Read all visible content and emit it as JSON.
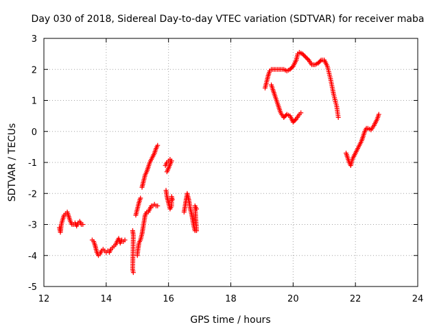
{
  "chart_data": {
    "type": "scatter",
    "title": "Day 030 of 2018, Sidereal Day-to-day VTEC variation (SDTVAR) for receiver maba",
    "xlabel": "GPS time / hours",
    "ylabel": "SDTVAR / TECUs",
    "xlim": [
      12,
      24
    ],
    "ylim": [
      -5,
      3
    ],
    "x_ticks": [
      12,
      14,
      16,
      18,
      20,
      22,
      24
    ],
    "y_ticks": [
      -5,
      -4,
      -3,
      -2,
      -1,
      0,
      1,
      2,
      3
    ],
    "x_tick_labels": [
      "12",
      "14",
      "16",
      "18",
      "20",
      "22",
      "24"
    ],
    "y_tick_labels": [
      "-5",
      "-4",
      "-3",
      "-2",
      "-1",
      "0",
      "1",
      "2",
      "3"
    ],
    "grid": true,
    "marker": "+",
    "color": "#ff0000",
    "series": [
      {
        "name": "SDTVAR",
        "segments": [
          [
            [
              12.5,
              -3.1
            ],
            [
              12.53,
              -3.25
            ],
            [
              12.56,
              -3.0
            ],
            [
              12.6,
              -2.85
            ],
            [
              12.65,
              -2.7
            ],
            [
              12.7,
              -2.65
            ],
            [
              12.75,
              -2.6
            ],
            [
              12.8,
              -2.75
            ],
            [
              12.85,
              -2.9
            ],
            [
              12.9,
              -3.0
            ],
            [
              12.95,
              -3.0
            ],
            [
              13.0,
              -2.95
            ],
            [
              13.05,
              -3.05
            ],
            [
              13.1,
              -2.95
            ],
            [
              13.15,
              -2.9
            ],
            [
              13.2,
              -3.0
            ],
            [
              13.25,
              -3.0
            ]
          ],
          [
            [
              13.55,
              -3.5
            ],
            [
              13.6,
              -3.55
            ],
            [
              13.65,
              -3.7
            ],
            [
              13.7,
              -3.9
            ],
            [
              13.75,
              -4.0
            ],
            [
              13.8,
              -3.95
            ],
            [
              13.85,
              -3.85
            ],
            [
              13.9,
              -3.8
            ],
            [
              13.95,
              -3.85
            ],
            [
              14.0,
              -3.9
            ],
            [
              14.05,
              -3.85
            ],
            [
              14.1,
              -3.9
            ],
            [
              14.15,
              -3.8
            ],
            [
              14.2,
              -3.75
            ],
            [
              14.25,
              -3.7
            ],
            [
              14.3,
              -3.65
            ],
            [
              14.35,
              -3.55
            ],
            [
              14.4,
              -3.45
            ],
            [
              14.45,
              -3.6
            ],
            [
              14.5,
              -3.5
            ],
            [
              14.55,
              -3.55
            ],
            [
              14.6,
              -3.5
            ]
          ],
          [
            [
              14.85,
              -3.2
            ],
            [
              14.87,
              -3.35
            ],
            [
              14.85,
              -4.45
            ],
            [
              14.87,
              -4.55
            ]
          ],
          [
            [
              15.0,
              -4.0
            ],
            [
              15.02,
              -3.8
            ],
            [
              15.05,
              -3.6
            ],
            [
              15.1,
              -3.5
            ],
            [
              15.15,
              -3.3
            ],
            [
              15.2,
              -3.0
            ],
            [
              15.25,
              -2.7
            ],
            [
              15.3,
              -2.6
            ],
            [
              15.35,
              -2.6
            ],
            [
              15.4,
              -2.5
            ],
            [
              15.45,
              -2.4
            ],
            [
              15.5,
              -2.4
            ],
            [
              15.55,
              -2.35
            ],
            [
              15.6,
              -2.4
            ],
            [
              15.65,
              -2.4
            ]
          ],
          [
            [
              14.95,
              -2.7
            ],
            [
              15.0,
              -2.5
            ],
            [
              15.05,
              -2.3
            ],
            [
              15.1,
              -2.15
            ]
          ],
          [
            [
              15.15,
              -1.8
            ],
            [
              15.2,
              -1.6
            ],
            [
              15.25,
              -1.4
            ],
            [
              15.3,
              -1.3
            ],
            [
              15.35,
              -1.15
            ],
            [
              15.4,
              -1.0
            ],
            [
              15.45,
              -0.9
            ],
            [
              15.5,
              -0.8
            ],
            [
              15.55,
              -0.7
            ],
            [
              15.6,
              -0.55
            ],
            [
              15.65,
              -0.45
            ]
          ],
          [
            [
              15.9,
              -1.1
            ],
            [
              15.95,
              -1.0
            ],
            [
              16.0,
              -0.95
            ],
            [
              16.05,
              -0.9
            ],
            [
              16.1,
              -0.95
            ],
            [
              15.95,
              -1.3
            ]
          ],
          [
            [
              15.92,
              -1.9
            ],
            [
              15.95,
              -2.1
            ],
            [
              16.0,
              -2.3
            ],
            [
              16.05,
              -2.5
            ],
            [
              16.1,
              -2.4
            ],
            [
              16.1,
              -2.1
            ],
            [
              16.12,
              -2.2
            ]
          ],
          [
            [
              16.5,
              -2.6
            ],
            [
              16.55,
              -2.3
            ],
            [
              16.6,
              -2.0
            ],
            [
              16.65,
              -2.2
            ],
            [
              16.7,
              -2.5
            ],
            [
              16.75,
              -2.7
            ],
            [
              16.8,
              -3.0
            ],
            [
              16.85,
              -3.2
            ],
            [
              16.9,
              -3.2
            ],
            [
              16.85,
              -2.4
            ],
            [
              16.9,
              -2.5
            ]
          ],
          [
            [
              19.1,
              1.4
            ],
            [
              19.15,
              1.6
            ],
            [
              19.2,
              1.8
            ],
            [
              19.25,
              1.95
            ],
            [
              19.3,
              2.0
            ],
            [
              19.4,
              2.0
            ],
            [
              19.5,
              2.0
            ],
            [
              19.6,
              2.0
            ],
            [
              19.7,
              2.0
            ],
            [
              19.8,
              1.95
            ],
            [
              19.9,
              2.0
            ],
            [
              20.0,
              2.1
            ],
            [
              20.1,
              2.3
            ],
            [
              20.15,
              2.5
            ],
            [
              20.2,
              2.55
            ],
            [
              20.3,
              2.5
            ],
            [
              20.4,
              2.4
            ],
            [
              20.5,
              2.3
            ],
            [
              20.6,
              2.15
            ],
            [
              20.7,
              2.15
            ],
            [
              20.8,
              2.2
            ],
            [
              20.9,
              2.3
            ],
            [
              21.0,
              2.3
            ],
            [
              21.1,
              2.1
            ],
            [
              21.2,
              1.7
            ],
            [
              21.3,
              1.2
            ],
            [
              21.4,
              0.8
            ],
            [
              21.45,
              0.45
            ]
          ],
          [
            [
              19.3,
              1.5
            ],
            [
              19.4,
              1.2
            ],
            [
              19.5,
              0.9
            ],
            [
              19.6,
              0.6
            ],
            [
              19.7,
              0.45
            ],
            [
              19.8,
              0.55
            ],
            [
              19.9,
              0.5
            ],
            [
              20.0,
              0.3
            ],
            [
              20.1,
              0.4
            ],
            [
              20.2,
              0.55
            ],
            [
              20.25,
              0.6
            ]
          ],
          [
            [
              21.7,
              -0.7
            ],
            [
              21.75,
              -0.85
            ],
            [
              21.8,
              -1.0
            ],
            [
              21.85,
              -1.1
            ],
            [
              21.9,
              -0.9
            ],
            [
              22.0,
              -0.7
            ],
            [
              22.1,
              -0.5
            ],
            [
              22.2,
              -0.3
            ],
            [
              22.3,
              0.0
            ],
            [
              22.35,
              0.1
            ],
            [
              22.4,
              0.1
            ],
            [
              22.5,
              0.05
            ],
            [
              22.6,
              0.2
            ],
            [
              22.7,
              0.4
            ],
            [
              22.75,
              0.55
            ]
          ]
        ]
      }
    ]
  }
}
